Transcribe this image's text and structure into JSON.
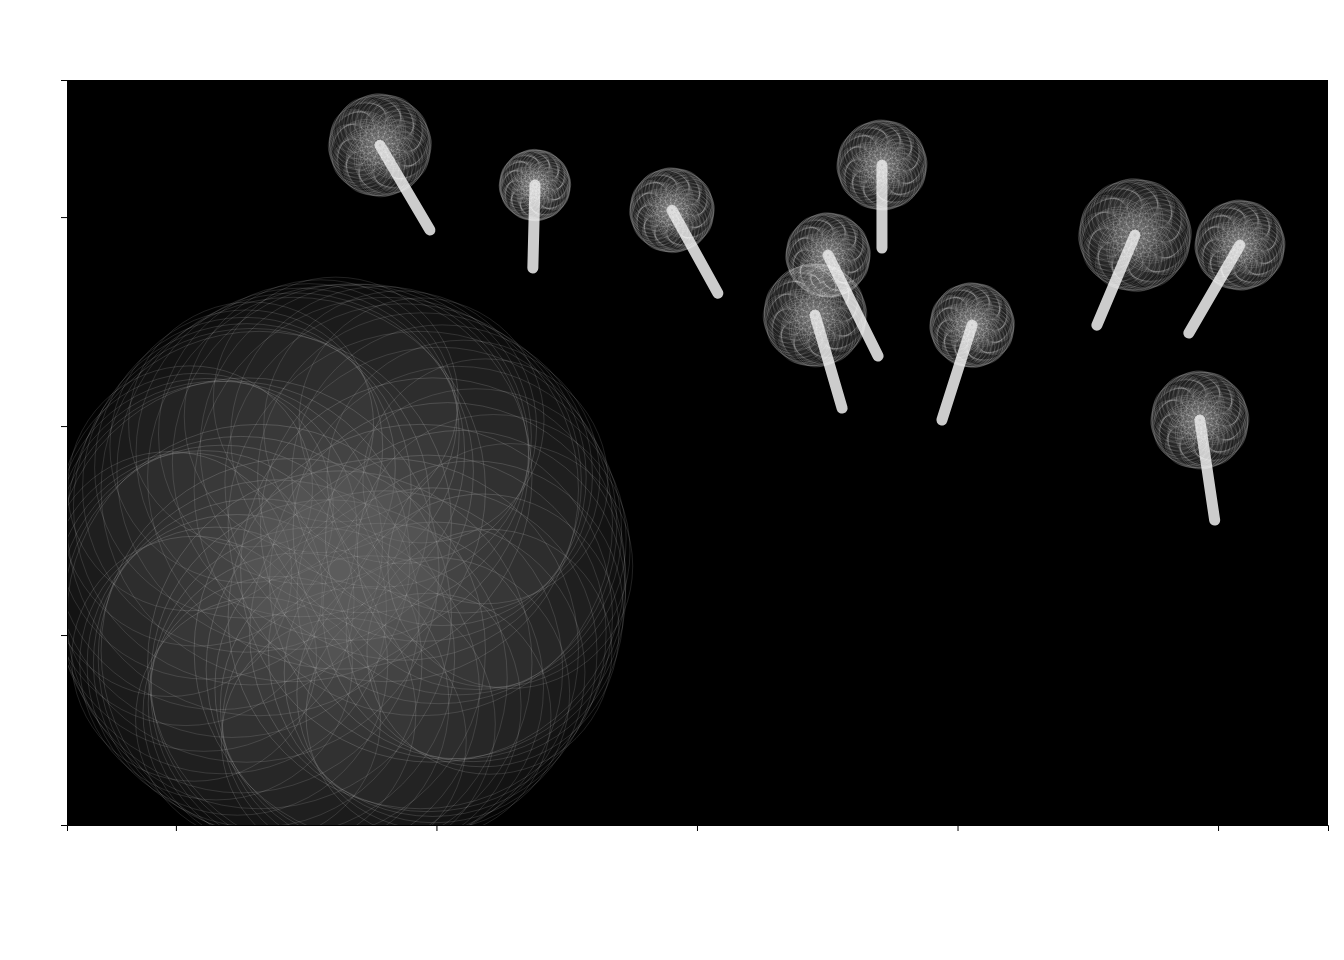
{
  "chart_data": {
    "type": "scatter",
    "x": [
      0.783,
      1.378,
      1.904,
      2.71,
      2.503,
      2.453,
      3.056,
      3.681,
      4.084,
      3.93,
      0.629
    ],
    "values": [
      1.344,
      1.153,
      1.033,
      1.249,
      0.818,
      0.531,
      0.483,
      0.914,
      0.866,
      0.029,
      -0.689
    ],
    "sizes": [
      0.21,
      0.146,
      0.173,
      0.184,
      0.173,
      0.211,
      0.173,
      0.23,
      0.184,
      0.2,
      1.19
    ],
    "stem_x": [
      0.975,
      1.37,
      2.08,
      2.71,
      2.695,
      2.557,
      2.94,
      3.535,
      3.888,
      3.987,
      null
    ],
    "stem_y": [
      0.938,
      0.756,
      0.636,
      0.852,
      0.335,
      0.086,
      0.029,
      0.483,
      0.445,
      -0.45,
      null
    ],
    "color": "#ffffff",
    "xlim": [
      -0.418,
      4.422
    ],
    "ylim": [
      -1.909,
      1.656
    ],
    "xticks": [
      0,
      1,
      2,
      3,
      4
    ],
    "yticks": [
      -1,
      0,
      1
    ],
    "tick_labels": false,
    "grid": false
  }
}
